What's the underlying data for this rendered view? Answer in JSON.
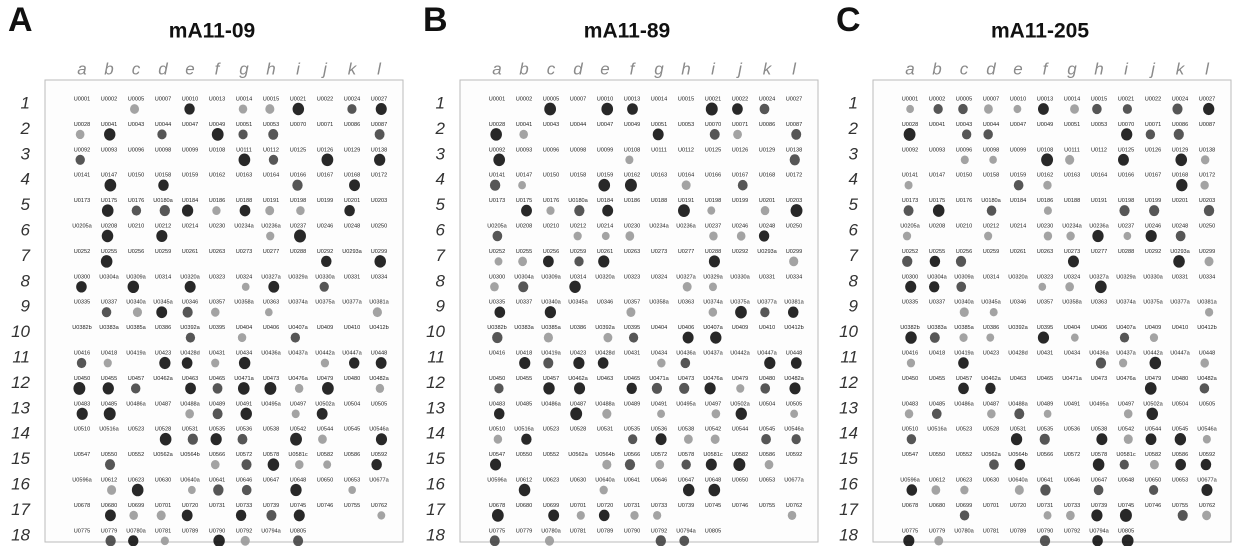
{
  "panels": [
    {
      "letter": "A",
      "title": "mA11-09"
    },
    {
      "letter": "B",
      "title": "mA11-89"
    },
    {
      "letter": "C",
      "title": "mA11-205"
    }
  ],
  "column_labels": [
    "a",
    "b",
    "c",
    "d",
    "e",
    "f",
    "g",
    "h",
    "i",
    "j",
    "k",
    "l"
  ],
  "row_labels": [
    "1",
    "2",
    "3",
    "4",
    "5",
    "6",
    "7",
    "8",
    "9",
    "10",
    "11",
    "12",
    "13",
    "14",
    "15",
    "16",
    "17",
    "18"
  ],
  "spot_labels": [
    [
      "U0001",
      "U0002",
      "U0005",
      "U0007",
      "U0010",
      "U0013",
      "U0014",
      "U0015",
      "U0021",
      "U0022",
      "U0024",
      "U0027"
    ],
    [
      "U0028",
      "U0041",
      "U0043",
      "U0044",
      "U0047",
      "U0049",
      "U0051",
      "U0053",
      "U0070",
      "U0071",
      "U0086",
      "U0087"
    ],
    [
      "U0092",
      "U0093",
      "U0096",
      "U0098",
      "U0099",
      "U0108",
      "U0111",
      "U0112",
      "U0125",
      "U0126",
      "U0129",
      "U0138"
    ],
    [
      "U0141",
      "U0147",
      "U0150",
      "U0158",
      "U0159",
      "U0162",
      "U0163",
      "U0164",
      "U0166",
      "U0167",
      "U0168",
      "U0172"
    ],
    [
      "U0173",
      "U0175",
      "U0176",
      "U0180a",
      "U0184",
      "U0186",
      "U0188",
      "U0191",
      "U0198",
      "U0199",
      "U0201",
      "U0203"
    ],
    [
      "U0205a",
      "U0208",
      "U0210",
      "U0212",
      "U0214",
      "U0230",
      "U0234a",
      "U0236a",
      "U0237",
      "U0246",
      "U0248",
      "U0250"
    ],
    [
      "U0252",
      "U0255",
      "U0256",
      "U0259",
      "U0261",
      "U0263",
      "U0273",
      "U0277",
      "U0288",
      "U0292",
      "U0293a",
      "U0299"
    ],
    [
      "U0300",
      "U0304a",
      "U0309a",
      "U0314",
      "U0320a",
      "U0323",
      "U0324",
      "U0327a",
      "U0329a",
      "U0330a",
      "U0331",
      "U0334"
    ],
    [
      "U0335",
      "U0337",
      "U0340a",
      "U0345a",
      "U0346",
      "U0357",
      "U0358a",
      "U0363",
      "U0374a",
      "U0375a",
      "U0377a",
      "U0381a"
    ],
    [
      "U0382b",
      "U0383a",
      "U0385a",
      "U0386",
      "U0392a",
      "U0395",
      "U0404",
      "U0406",
      "U0407a",
      "U0409",
      "U0410",
      "U0412b"
    ],
    [
      "U0416",
      "U0418",
      "U0419a",
      "U0423",
      "U0428d",
      "U0431",
      "U0434",
      "U0436a",
      "U0437a",
      "U0442a",
      "U0447a",
      "U0448"
    ],
    [
      "U0450",
      "U0455",
      "U0457",
      "U0462a",
      "U0463",
      "U0465",
      "U0471a",
      "U0473",
      "U0476a",
      "U0479",
      "U0480",
      "U0482a"
    ],
    [
      "U0483",
      "U0485",
      "U0486a",
      "U0487",
      "U0488a",
      "U0489",
      "U0491",
      "U0495a",
      "U0497",
      "U0502a",
      "U0504",
      "U0505"
    ],
    [
      "U0510",
      "U0516a",
      "U0523",
      "U0528",
      "U0531",
      "U0535",
      "U0536",
      "U0538",
      "U0542",
      "U0544",
      "U0545",
      "U0546a"
    ],
    [
      "U0547",
      "U0550",
      "U0552",
      "U0562a",
      "U0564b",
      "U0566",
      "U0572",
      "U0578",
      "U0581c",
      "U0582",
      "U0586",
      "U0592"
    ],
    [
      "U0596a",
      "U0612",
      "U0623",
      "U0630",
      "U0640a",
      "U0641",
      "U0646",
      "U0647",
      "U0648",
      "U0650",
      "U0653",
      "U0677a"
    ],
    [
      "U0678",
      "U0680",
      "U0699",
      "U0701",
      "U0720",
      "U0731",
      "U0733",
      "U0739",
      "U0745",
      "U0746",
      "U0755",
      "U0762"
    ],
    [
      "U0775",
      "U0779",
      "U0780a",
      "U0781",
      "U0789",
      "U0790",
      "U0792",
      "U0794a",
      "U0805"
    ]
  ]
}
